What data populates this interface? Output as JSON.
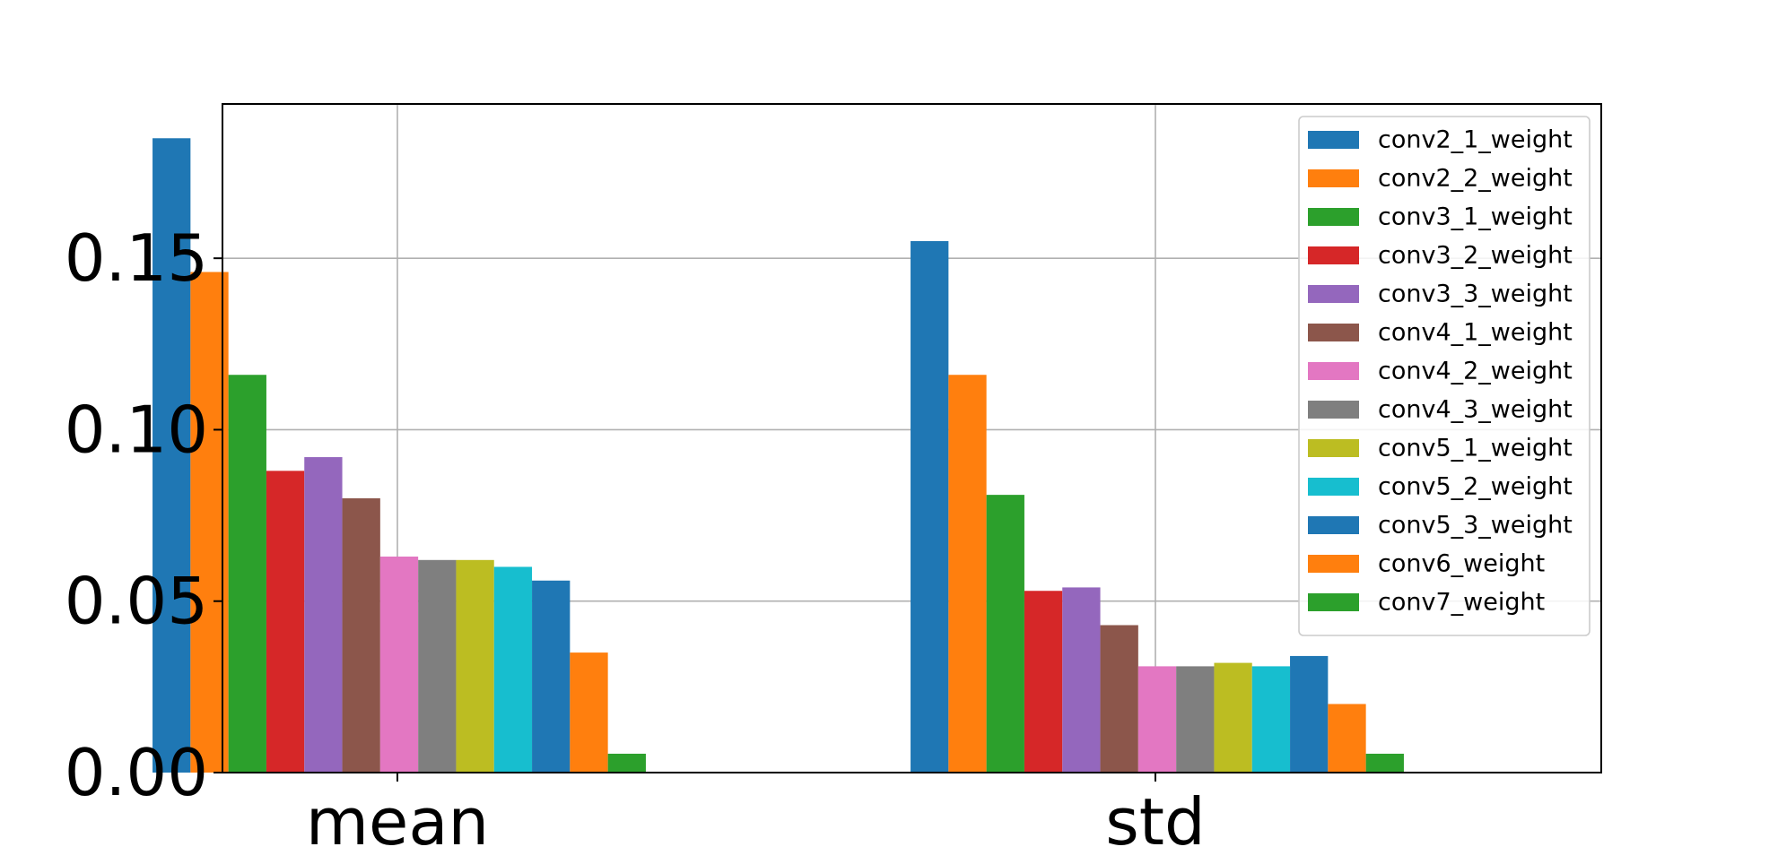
{
  "chart_data": {
    "type": "bar",
    "categories": [
      "mean",
      "std"
    ],
    "series": [
      {
        "name": "conv2_1_weight",
        "color": "#1f77b4",
        "values": [
          0.185,
          0.155
        ]
      },
      {
        "name": "conv2_2_weight",
        "color": "#ff7f0e",
        "values": [
          0.146,
          0.116
        ]
      },
      {
        "name": "conv3_1_weight",
        "color": "#2ca02c",
        "values": [
          0.116,
          0.081
        ]
      },
      {
        "name": "conv3_2_weight",
        "color": "#d62728",
        "values": [
          0.088,
          0.053
        ]
      },
      {
        "name": "conv3_3_weight",
        "color": "#9467bd",
        "values": [
          0.092,
          0.054
        ]
      },
      {
        "name": "conv4_1_weight",
        "color": "#8c564b",
        "values": [
          0.08,
          0.043
        ]
      },
      {
        "name": "conv4_2_weight",
        "color": "#e377c2",
        "values": [
          0.063,
          0.031
        ]
      },
      {
        "name": "conv4_3_weight",
        "color": "#7f7f7f",
        "values": [
          0.062,
          0.031
        ]
      },
      {
        "name": "conv5_1_weight",
        "color": "#bcbd22",
        "values": [
          0.062,
          0.032
        ]
      },
      {
        "name": "conv5_2_weight",
        "color": "#17becf",
        "values": [
          0.06,
          0.031
        ]
      },
      {
        "name": "conv5_3_weight",
        "color": "#1f77b4",
        "values": [
          0.056,
          0.034
        ]
      },
      {
        "name": "conv6_weight",
        "color": "#ff7f0e",
        "values": [
          0.035,
          0.02
        ]
      },
      {
        "name": "conv7_weight",
        "color": "#2ca02c",
        "values": [
          0.0055,
          0.0055
        ]
      }
    ],
    "yticks": [
      "0.00",
      "0.05",
      "0.10",
      "0.15"
    ],
    "ytick_values": [
      0.0,
      0.05,
      0.1,
      0.15
    ],
    "ylim": [
      0,
      0.195
    ],
    "title": "",
    "xlabel": "",
    "ylabel": "",
    "grid": true,
    "legend_position": "top-right"
  }
}
